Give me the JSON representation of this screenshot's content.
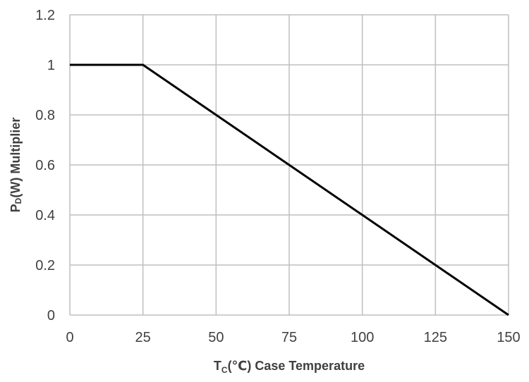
{
  "chart_data": {
    "type": "line",
    "title": "",
    "xlabel": {
      "prefix": "T",
      "subscript": "C",
      "rest": "(℃) Case Temperature"
    },
    "ylabel": {
      "prefix": "P",
      "subscript": "D",
      "rest": "(W) Multiplier"
    },
    "xlim": [
      0,
      150
    ],
    "ylim": [
      0,
      1.2
    ],
    "xticks": [
      0,
      25,
      50,
      75,
      100,
      125,
      150
    ],
    "xtick_labels": [
      "0",
      "25",
      "50",
      "75",
      "100",
      "125",
      "150"
    ],
    "yticks": [
      0,
      0.2,
      0.4,
      0.6,
      0.8,
      1,
      1.2
    ],
    "ytick_labels": [
      "0",
      "0.2",
      "0.4",
      "0.6",
      "0.8",
      "1",
      "1.2"
    ],
    "grid": true,
    "series": [
      {
        "name": "PD(W) Multiplier",
        "color": "#000000",
        "x": [
          0,
          25,
          150
        ],
        "y": [
          1,
          1,
          0
        ]
      }
    ]
  }
}
